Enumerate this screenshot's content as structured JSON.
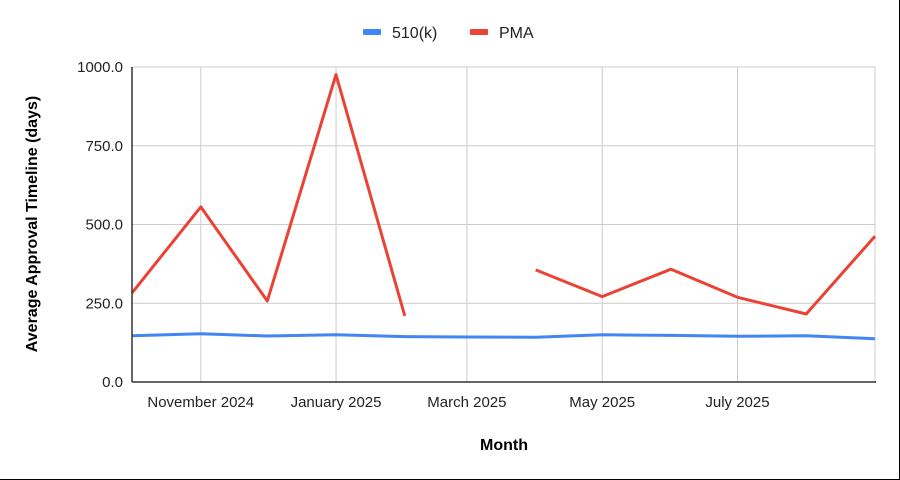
{
  "chart_data": {
    "type": "line",
    "title": "",
    "xlabel": "Month",
    "ylabel": "Average Approval Timeline (days)",
    "ylim": [
      0,
      1000
    ],
    "yticks": [
      "0.0",
      "250.0",
      "500.0",
      "750.0",
      "1000.0"
    ],
    "xtick_labels": [
      "November 2024",
      "January 2025",
      "March 2025",
      "May 2025",
      "July 2025"
    ],
    "grid": true,
    "legend_position": "top",
    "x": [
      "2024-10",
      "2024-11",
      "2024-12",
      "2025-01",
      "2025-02",
      "2025-03",
      "2025-04",
      "2025-05",
      "2025-06",
      "2025-07",
      "2025-08",
      "2025-09"
    ],
    "series": [
      {
        "name": "510(k)",
        "color": "#4285F4",
        "values": [
          147,
          153,
          146,
          150,
          144,
          143,
          142,
          150,
          148,
          145,
          147,
          137
        ]
      },
      {
        "name": "PMA",
        "color": "#EA4335",
        "values": [
          283,
          556,
          257,
          976,
          210,
          null,
          356,
          271,
          358,
          269,
          216,
          463
        ]
      }
    ]
  },
  "legend": {
    "items": [
      {
        "label": "510(k)",
        "color": "#4285F4"
      },
      {
        "label": "PMA",
        "color": "#EA4335"
      }
    ]
  },
  "axes": {
    "y_title": "Average Approval Timeline (days)",
    "x_title": "Month"
  }
}
